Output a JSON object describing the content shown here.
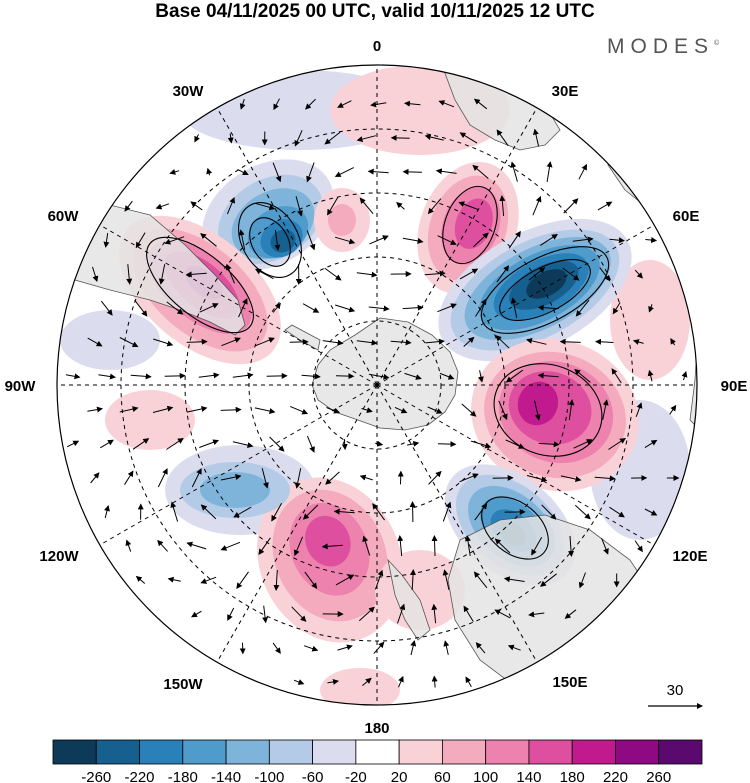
{
  "title": "Base 04/11/2025 00 UTC, valid 10/11/2025 12 UTC",
  "brand": "MODES",
  "brand_mark": "©",
  "longitude_labels": [
    "0",
    "30E",
    "60E",
    "90E",
    "120E",
    "150E",
    "180",
    "150W",
    "120W",
    "90W",
    "60W",
    "30W"
  ],
  "vector_reference": "30",
  "colorbar": {
    "ticks": [
      "-260",
      "-220",
      "-180",
      "-140",
      "-100",
      "-60",
      "-20",
      "20",
      "60",
      "100",
      "140",
      "180",
      "220",
      "260"
    ],
    "colors": [
      "#0e3a5a",
      "#15608f",
      "#2a80b8",
      "#4f9ccc",
      "#7fb4da",
      "#b3cbe6",
      "#dcdcef",
      "#ffffff",
      "#f9d2d8",
      "#f4abbe",
      "#ec82ad",
      "#df4f9f",
      "#c11a8e",
      "#8f0a82",
      "#5a0a6e"
    ]
  },
  "anomalies": [
    {
      "name": "anomaly-blob-neg-east-atlantic-west",
      "sign": "negative",
      "value": -180
    },
    {
      "name": "anomaly-blob-pos-south-america",
      "sign": "positive",
      "value": 200
    },
    {
      "name": "anomaly-blob-pos-weak-central",
      "sign": "positive",
      "value": 60
    },
    {
      "name": "anomaly-blob-pos-south-africa",
      "sign": "positive",
      "value": 180
    },
    {
      "name": "anomaly-blob-neg-indian-ocean",
      "sign": "negative",
      "value": -240
    },
    {
      "name": "anomaly-blob-pos-east-indian-ocean",
      "sign": "positive",
      "value": 200
    },
    {
      "name": "anomaly-blob-neg-australia",
      "sign": "negative",
      "value": -200
    },
    {
      "name": "anomaly-blob-pos-south-pacific",
      "sign": "positive",
      "value": 140
    },
    {
      "name": "anomaly-blob-neg-east-pacific",
      "sign": "negative",
      "value": -100
    }
  ],
  "colors": {
    "land": "#e4e4e4",
    "coast": "#555555",
    "grid": "#000000"
  }
}
